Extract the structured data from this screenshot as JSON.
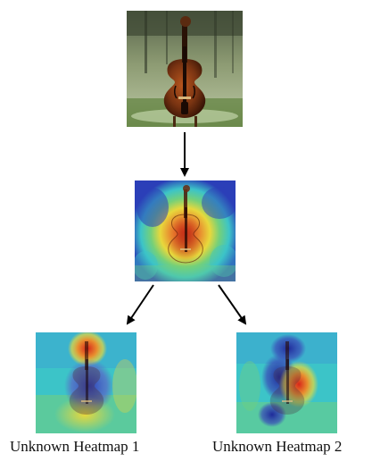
{
  "images": {
    "original": {
      "subject": "violin"
    },
    "heatmap_main": {
      "subject": "violin heatmap overlay"
    },
    "heatmap_1": {
      "label": "Unknown Heatmap 1"
    },
    "heatmap_2": {
      "label": "Unknown Heatmap 2"
    }
  },
  "colors": {
    "arrow": "#000000",
    "caption": "#111111",
    "violin_wood": "#7a3412",
    "violin_dark": "#3a1606",
    "background_green": "#5e8a4c",
    "heat_blue": "#2b3fb8",
    "heat_cyan": "#3cc4c8",
    "heat_yellow": "#e8d83c",
    "heat_red": "#d8261a"
  },
  "icons": {
    "arrow": "arrow-down-icon"
  }
}
